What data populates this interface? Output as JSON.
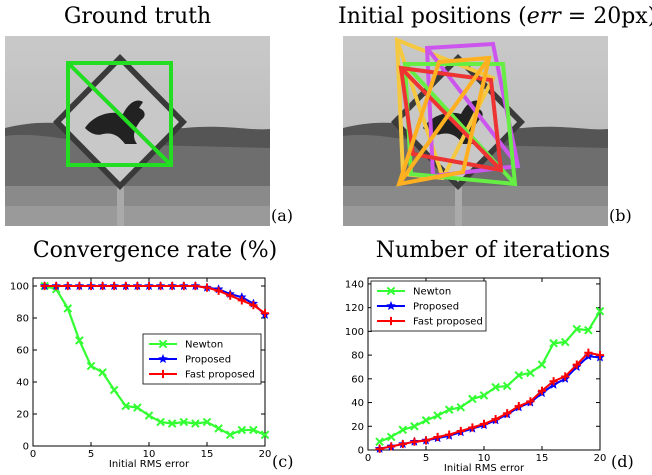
{
  "panels": {
    "a": {
      "title": "Ground truth",
      "label": "(a)",
      "box_color": "#22dd22"
    },
    "b": {
      "title_main": "Initial positions (",
      "title_err": "err",
      "title_eq": " = 20px)",
      "label": "(b)",
      "box_colors": [
        "#f5c842",
        "#cc55ee",
        "#66ee44",
        "#ee3333",
        "#ffb020"
      ]
    },
    "c": {
      "title": "Convergence rate (%)",
      "label": "(c)"
    },
    "d": {
      "title": "Number of iterations",
      "label": "(d)"
    }
  },
  "chart_data": [
    {
      "type": "line",
      "title": "Convergence rate (%)",
      "xlabel": "Initial RMS error",
      "ylabel": "",
      "xlim": [
        0,
        20
      ],
      "ylim": [
        0,
        105
      ],
      "xticks": [
        0,
        5,
        10,
        15,
        20
      ],
      "yticks": [
        0,
        20,
        40,
        60,
        80,
        100
      ],
      "legend_position": "center-right",
      "x": [
        1,
        2,
        3,
        4,
        5,
        6,
        7,
        8,
        9,
        10,
        11,
        12,
        13,
        14,
        15,
        16,
        17,
        18,
        19,
        20
      ],
      "series": [
        {
          "name": "Newton",
          "color": "#33ff33",
          "marker": "x",
          "values": [
            100,
            98,
            86,
            66,
            50,
            46,
            35,
            25,
            24,
            19,
            15,
            14,
            15,
            14,
            15,
            11,
            7,
            10,
            10,
            7
          ]
        },
        {
          "name": "Proposed",
          "color": "#0000ff",
          "marker": "star",
          "values": [
            100,
            100,
            100,
            100,
            100,
            100,
            100,
            100,
            100,
            100,
            100,
            100,
            100,
            100,
            99,
            98,
            95,
            93,
            89,
            82
          ]
        },
        {
          "name": "Fast proposed",
          "color": "#ff0000",
          "marker": "plus",
          "values": [
            100,
            100,
            100,
            100,
            100,
            100,
            100,
            100,
            100,
            100,
            100,
            100,
            100,
            100,
            99,
            97,
            94,
            91,
            88,
            83
          ]
        }
      ]
    },
    {
      "type": "line",
      "title": "Number of iterations",
      "xlabel": "Initial RMS error",
      "ylabel": "",
      "xlim": [
        0,
        20
      ],
      "ylim": [
        0,
        145
      ],
      "xticks": [
        0,
        5,
        10,
        15,
        20
      ],
      "yticks": [
        0,
        20,
        40,
        60,
        80,
        100,
        120,
        140
      ],
      "legend_position": "top-left",
      "x": [
        1,
        2,
        3,
        4,
        5,
        6,
        7,
        8,
        9,
        10,
        11,
        12,
        13,
        14,
        15,
        16,
        17,
        18,
        19,
        20
      ],
      "series": [
        {
          "name": "Newton",
          "color": "#33ff33",
          "marker": "x",
          "values": [
            7,
            11,
            17,
            20,
            25,
            29,
            34,
            36,
            43,
            46,
            53,
            54,
            63,
            65,
            72,
            90,
            91,
            102,
            101,
            117
          ]
        },
        {
          "name": "Proposed",
          "color": "#0000ff",
          "marker": "star",
          "values": [
            1,
            3,
            5,
            7,
            8,
            10,
            12,
            15,
            18,
            21,
            25,
            30,
            36,
            40,
            48,
            55,
            60,
            70,
            79,
            78
          ]
        },
        {
          "name": "Fast proposed",
          "color": "#ff0000",
          "marker": "plus",
          "values": [
            1,
            3,
            5,
            7,
            8,
            11,
            13,
            16,
            19,
            22,
            26,
            31,
            37,
            41,
            50,
            58,
            62,
            72,
            82,
            80
          ]
        }
      ]
    }
  ]
}
